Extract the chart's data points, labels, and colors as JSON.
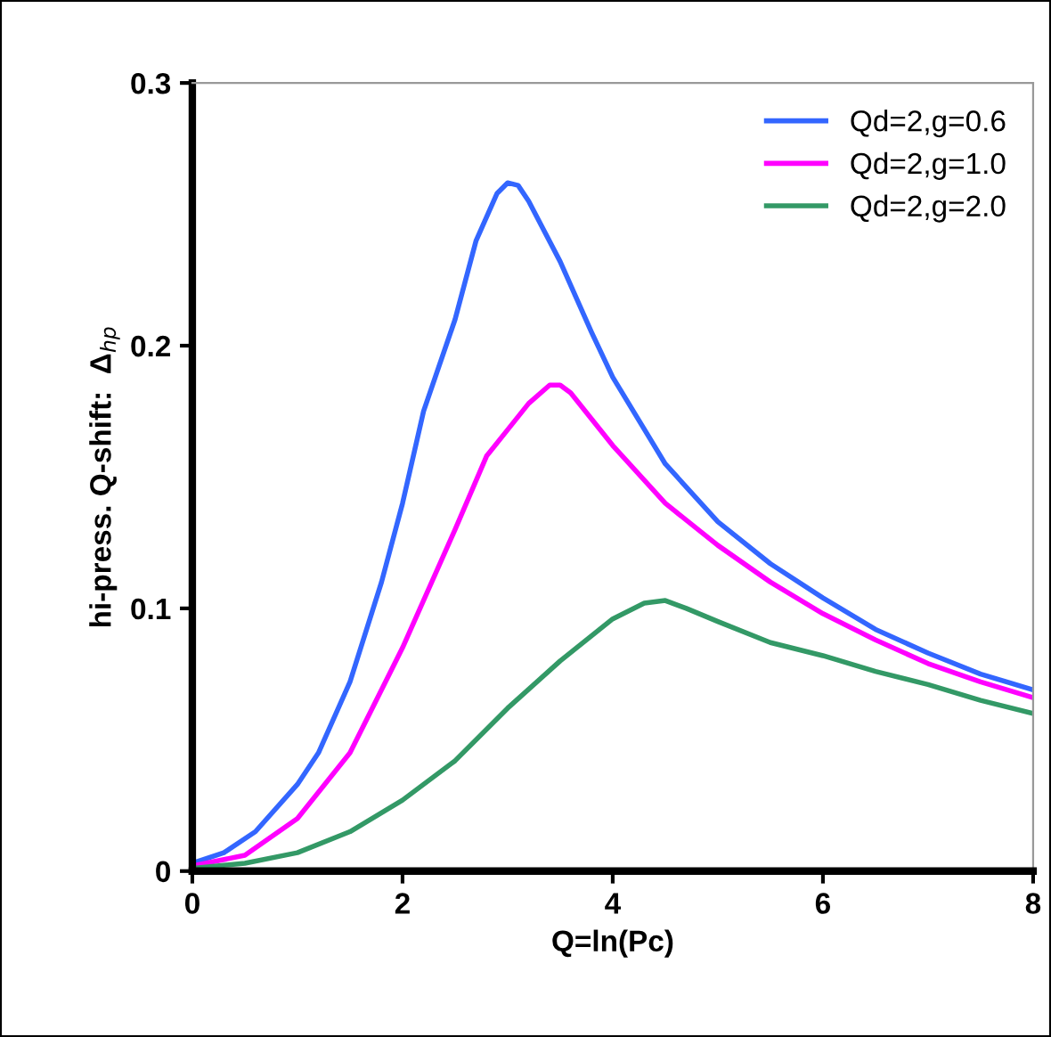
{
  "chart_data": {
    "type": "line",
    "xlabel": "Q=ln(Pc)",
    "ylabel": "hi-press. Q-shift:  Δ$_{hp}$",
    "xlim": [
      0,
      8
    ],
    "ylim": [
      0,
      0.3
    ],
    "xticks": [
      0,
      2,
      4,
      6,
      8
    ],
    "yticks": [
      0,
      0.1,
      0.2,
      0.3
    ],
    "grid": false,
    "legend": "top right",
    "marker": "none",
    "line_style": "solid",
    "series": [
      {
        "name": "Qd=2,g=0.6",
        "color": "#3366ff",
        "x": [
          0,
          0.3,
          0.6,
          1.0,
          1.2,
          1.5,
          1.8,
          2.0,
          2.2,
          2.5,
          2.7,
          2.9,
          3.0,
          3.1,
          3.2,
          3.5,
          3.8,
          4.0,
          4.5,
          5.0,
          5.5,
          6.0,
          6.5,
          7.0,
          7.5,
          8.0
        ],
        "values": [
          0.003,
          0.007,
          0.015,
          0.033,
          0.045,
          0.072,
          0.11,
          0.14,
          0.175,
          0.21,
          0.24,
          0.258,
          0.262,
          0.261,
          0.255,
          0.232,
          0.205,
          0.188,
          0.155,
          0.133,
          0.117,
          0.104,
          0.092,
          0.083,
          0.075,
          0.069
        ]
      },
      {
        "name": "Qd=2,g=1.0",
        "color": "#ff00ff",
        "x": [
          0,
          0.5,
          1.0,
          1.5,
          2.0,
          2.5,
          2.8,
          3.0,
          3.2,
          3.4,
          3.5,
          3.6,
          3.8,
          4.0,
          4.5,
          5.0,
          5.5,
          6.0,
          6.5,
          7.0,
          7.5,
          8.0
        ],
        "values": [
          0.002,
          0.006,
          0.02,
          0.045,
          0.085,
          0.13,
          0.158,
          0.168,
          0.178,
          0.185,
          0.185,
          0.182,
          0.172,
          0.162,
          0.14,
          0.124,
          0.11,
          0.098,
          0.088,
          0.079,
          0.072,
          0.066
        ]
      },
      {
        "name": "Qd=2,g=2.0",
        "color": "#339966",
        "x": [
          0,
          0.5,
          1.0,
          1.5,
          2.0,
          2.5,
          3.0,
          3.5,
          4.0,
          4.3,
          4.5,
          4.7,
          5.0,
          5.5,
          6.0,
          6.5,
          7.0,
          7.5,
          8.0
        ],
        "values": [
          0.001,
          0.003,
          0.007,
          0.015,
          0.027,
          0.042,
          0.062,
          0.08,
          0.096,
          0.102,
          0.103,
          0.1,
          0.095,
          0.087,
          0.082,
          0.076,
          0.071,
          0.065,
          0.06
        ]
      }
    ]
  }
}
